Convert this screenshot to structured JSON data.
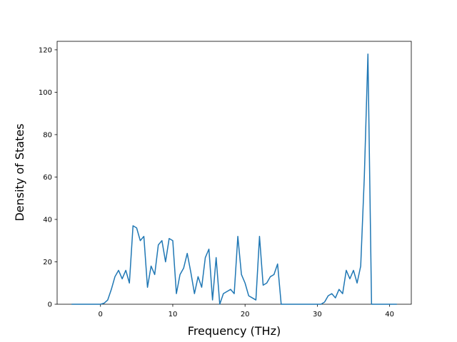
{
  "chart_data": {
    "type": "line",
    "xlabel": "Frequency (THz)",
    "ylabel": "Density of States",
    "x": [
      -4,
      -3.5,
      -3,
      -2.5,
      -2,
      -1.5,
      -1,
      -0.5,
      0,
      0.5,
      1,
      1.5,
      2,
      2.5,
      3,
      3.5,
      4,
      4.5,
      5,
      5.5,
      6,
      6.5,
      7,
      7.5,
      8,
      8.5,
      9,
      9.5,
      10,
      10.5,
      11,
      11.5,
      12,
      12.5,
      13,
      13.5,
      14,
      14.5,
      15,
      15.5,
      16,
      16.5,
      17,
      17.5,
      18,
      18.5,
      19,
      19.5,
      20,
      20.5,
      21,
      21.5,
      22,
      22.5,
      23,
      23.5,
      24,
      24.5,
      25,
      25.5,
      26,
      26.5,
      27,
      27.5,
      28,
      28.5,
      29,
      29.5,
      30,
      30.5,
      31,
      31.5,
      32,
      32.5,
      33,
      33.5,
      34,
      34.5,
      35,
      35.5,
      36,
      36.5,
      37,
      37.5,
      38,
      38.5,
      39,
      39.5,
      40,
      40.5,
      41
    ],
    "series": [
      {
        "color": "#1f77b4",
        "values": [
          0,
          0,
          0,
          0,
          0,
          0,
          0,
          0,
          0,
          0.5,
          2,
          7,
          13,
          16,
          12,
          16,
          10,
          37,
          36,
          30,
          32,
          8,
          18,
          14,
          28,
          30,
          20,
          31,
          30,
          5,
          14,
          17,
          24,
          15,
          5,
          13,
          8,
          22,
          26,
          2,
          22,
          0,
          5,
          6,
          7,
          5,
          32,
          14,
          10,
          4,
          3,
          2,
          32,
          9,
          10,
          13,
          14,
          19,
          0,
          0,
          0,
          0,
          0,
          0,
          0,
          0,
          0,
          0,
          0,
          0,
          1,
          4,
          5,
          3,
          7,
          5,
          16,
          12,
          16,
          10,
          18,
          60,
          118,
          0,
          0,
          0,
          0,
          0,
          0,
          0,
          0
        ]
      }
    ],
    "xlim": [
      -6,
      43
    ],
    "ylim": [
      0,
      124
    ],
    "xticks": [
      0,
      10,
      20,
      30,
      40
    ],
    "yticks": [
      0,
      20,
      40,
      60,
      80,
      100,
      120
    ]
  }
}
